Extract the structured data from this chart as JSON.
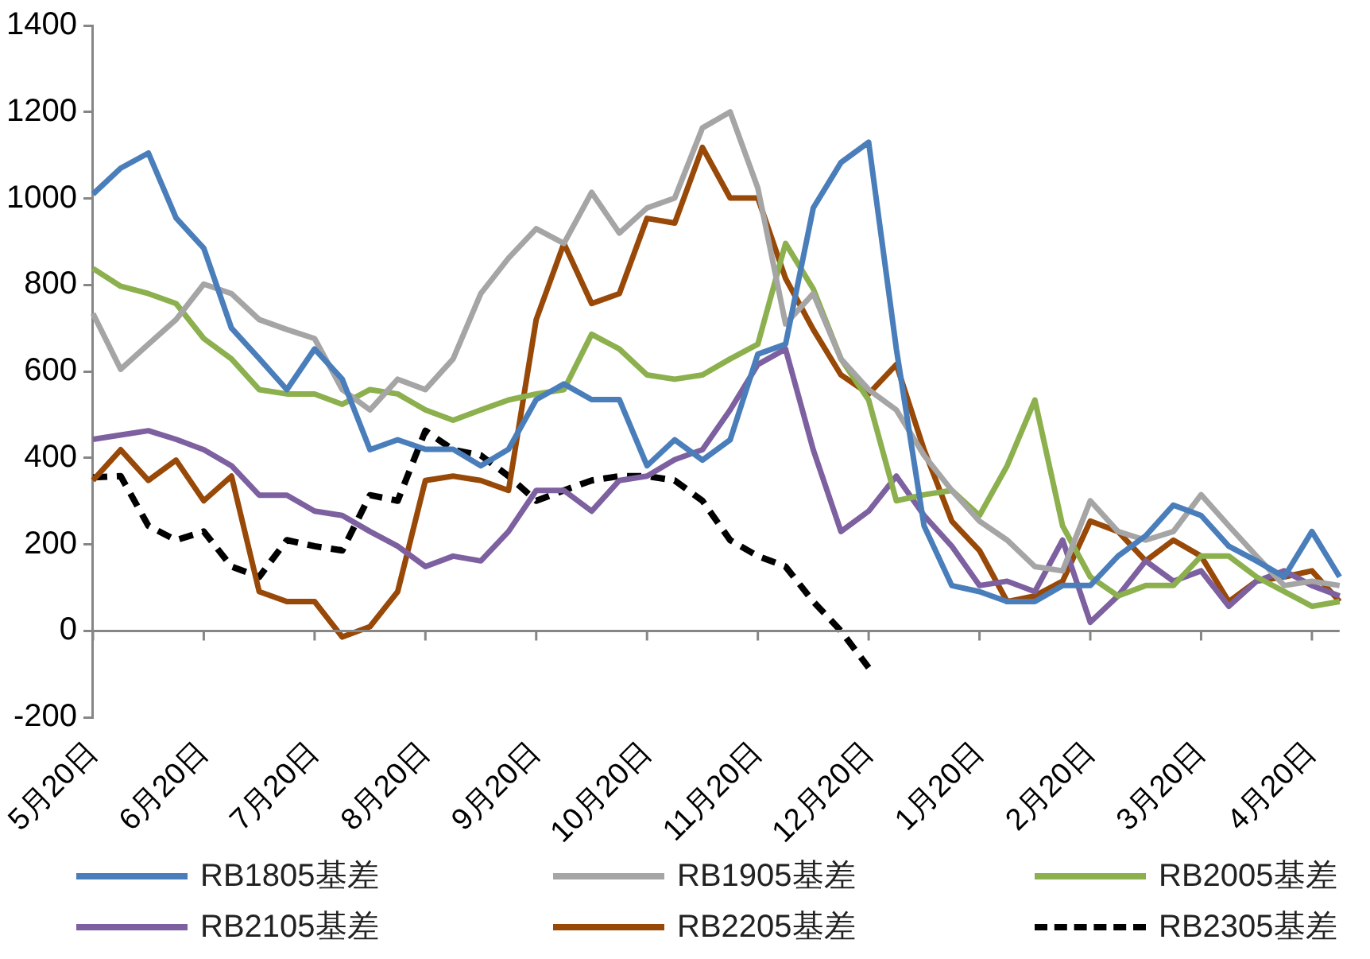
{
  "chart_data": {
    "type": "line",
    "categories": [
      "5月20日",
      null,
      null,
      null,
      "6月20日",
      null,
      null,
      null,
      "7月20日",
      null,
      null,
      null,
      "8月20日",
      null,
      null,
      null,
      "9月20日",
      null,
      null,
      null,
      "10月20日",
      null,
      null,
      null,
      "11月20日",
      null,
      null,
      null,
      "12月20日",
      null,
      null,
      null,
      "1月20日",
      null,
      null,
      null,
      "2月20日",
      null,
      null,
      null,
      "3月20日",
      null,
      null,
      null,
      "4月20日",
      null
    ],
    "ylim": [
      -200,
      1400
    ],
    "yticks": [
      -200,
      0,
      200,
      400,
      600,
      800,
      1000,
      1200,
      1400
    ],
    "legend": "bottom",
    "series": [
      {
        "name": "RB1805基差",
        "color": "#4a7ebb",
        "values": [
          1010,
          1070,
          1105,
          955,
          885,
          700,
          630,
          558,
          652,
          582,
          419,
          442,
          420,
          420,
          382,
          420,
          535,
          571,
          535,
          535,
          382,
          442,
          395,
          442,
          640,
          663,
          978,
          1083,
          1130,
          652,
          243,
          105,
          91,
          68,
          68,
          105,
          105,
          173,
          220,
          291,
          267,
          196,
          162,
          125,
          230,
          125
        ]
      },
      {
        "name": "RB1905基差",
        "color": "#a5a5a5",
        "values": [
          734,
          605,
          663,
          720,
          802,
          780,
          720,
          697,
          676,
          558,
          511,
          582,
          558,
          629,
          780,
          862,
          930,
          896,
          1014,
          920,
          978,
          1001,
          1163,
          1200,
          1024,
          710,
          780,
          629,
          558,
          511,
          406,
          325,
          254,
          210,
          149,
          139,
          301,
          230,
          210,
          230,
          315,
          243,
          173,
          105,
          115,
          105
        ]
      },
      {
        "name": "RB2005基差",
        "color": "#8cb04d",
        "values": [
          838,
          797,
          780,
          757,
          676,
          629,
          558,
          548,
          548,
          524,
          558,
          548,
          511,
          487,
          511,
          534,
          548,
          558,
          686,
          652,
          592,
          582,
          592,
          629,
          663,
          896,
          791,
          629,
          534,
          301,
          315,
          325,
          267,
          382,
          534,
          243,
          125,
          81,
          105,
          105,
          173,
          173,
          125,
          91,
          57,
          68
        ]
      },
      {
        "name": "RB2105基差",
        "color": "#7d60a0",
        "values": [
          443,
          453,
          463,
          443,
          419,
          382,
          314,
          314,
          277,
          267,
          230,
          196,
          149,
          173,
          162,
          230,
          325,
          325,
          277,
          348,
          358,
          396,
          419,
          511,
          616,
          652,
          419,
          230,
          277,
          358,
          267,
          196,
          105,
          115,
          91,
          210,
          20,
          81,
          162,
          115,
          139,
          57,
          115,
          139,
          105,
          81
        ]
      },
      {
        "name": "RB2205基差",
        "color": "#984807",
        "values": [
          348,
          419,
          348,
          395,
          301,
          358,
          91,
          68,
          68,
          -14,
          10,
          91,
          348,
          358,
          348,
          325,
          720,
          896,
          757,
          780,
          954,
          943,
          1118,
          1001,
          1001,
          815,
          697,
          592,
          548,
          616,
          419,
          254,
          186,
          68,
          81,
          115,
          254,
          230,
          162,
          210,
          173,
          68,
          115,
          125,
          139,
          68
        ]
      },
      {
        "name": "RB2305基差",
        "color": "#000000",
        "line_style": "dashed",
        "values": [
          355,
          358,
          243,
          210,
          230,
          149,
          125,
          210,
          196,
          186,
          314,
          301,
          463,
          419,
          406,
          358,
          301,
          325,
          348,
          358,
          358,
          348,
          301,
          210,
          173,
          149,
          68,
          0,
          -85,
          null,
          null,
          null,
          null,
          null,
          null,
          null,
          null,
          null,
          null,
          null,
          null,
          null,
          null,
          null,
          null,
          null
        ]
      }
    ]
  }
}
